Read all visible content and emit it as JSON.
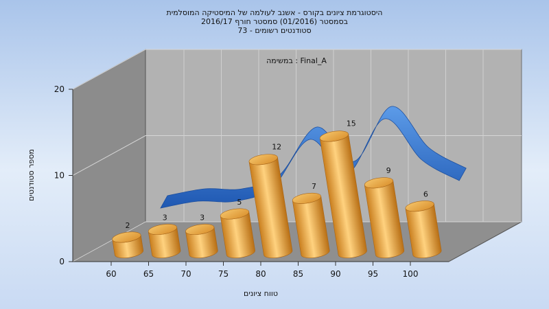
{
  "chart_data": {
    "type": "bar",
    "title_lines": [
      "היסטוגרמת ציונים בקורס - אשנב לעולמה של המיסטיקה המוסלמית",
      "בסמסטר  (01/2016)  סמסטר חורף  2016/17",
      "סטודנטים רשומים - 73"
    ],
    "annotation": "במשימה : Final_A",
    "xlabel": "טווח ציונים",
    "ylabel": "מספר סטודנטים",
    "categories": [
      "60",
      "65",
      "70",
      "75",
      "80",
      "85",
      "90",
      "95",
      "100"
    ],
    "values": [
      2,
      3,
      3,
      5,
      12,
      7,
      15,
      9,
      6
    ],
    "ylim": [
      0,
      20
    ],
    "yticks": [
      0,
      10,
      20
    ],
    "grid": true,
    "bar_color": "#e8a94a",
    "trend_color": "#2f6fc9"
  }
}
